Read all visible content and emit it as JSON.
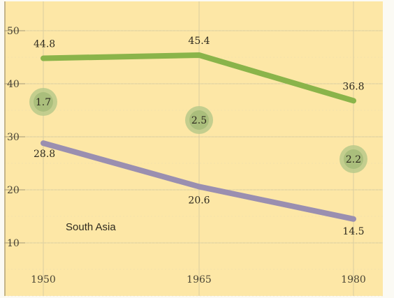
{
  "chart_data": {
    "type": "line",
    "x": [
      1950,
      1965,
      1980
    ],
    "ylim": [
      0,
      50
    ],
    "yticks": [
      10,
      20,
      30,
      40,
      50
    ],
    "xticks": [
      1950,
      1965,
      1980
    ],
    "grid": true,
    "background_color": "#fde7a6",
    "annotation": "South Asia",
    "series": [
      {
        "values": [
          44.8,
          45.4,
          36.8
        ],
        "labels": [
          "44.8",
          "45.4",
          "36.8"
        ],
        "color": "#8ab44a"
      },
      {
        "values": [
          28.8,
          20.6,
          14.5
        ],
        "labels": [
          "28.8",
          "20.6",
          "14.5"
        ],
        "color": "#9a8fb0"
      }
    ],
    "bubbles": [
      {
        "x": 1950,
        "label": "1.7"
      },
      {
        "x": 1965,
        "label": "2.5"
      },
      {
        "x": 1980,
        "label": "2.2"
      }
    ]
  }
}
